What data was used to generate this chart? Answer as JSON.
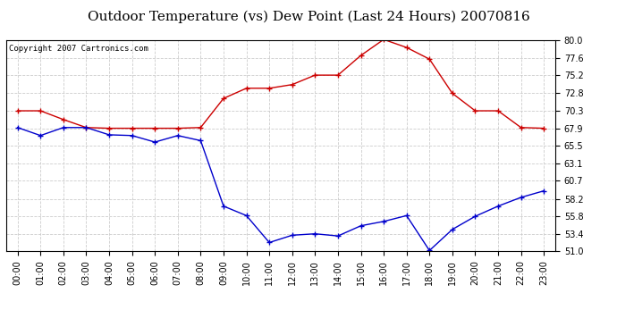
{
  "title": "Outdoor Temperature (vs) Dew Point (Last 24 Hours) 20070816",
  "copyright_text": "Copyright 2007 Cartronics.com",
  "hours": [
    "00:00",
    "01:00",
    "02:00",
    "03:00",
    "04:00",
    "05:00",
    "06:00",
    "07:00",
    "08:00",
    "09:00",
    "10:00",
    "11:00",
    "12:00",
    "13:00",
    "14:00",
    "15:00",
    "16:00",
    "17:00",
    "18:00",
    "19:00",
    "20:00",
    "21:00",
    "22:00",
    "23:00"
  ],
  "temp": [
    70.3,
    70.3,
    69.1,
    68.0,
    67.9,
    67.9,
    67.9,
    67.9,
    68.0,
    72.0,
    73.4,
    73.4,
    73.9,
    75.2,
    75.2,
    77.9,
    80.1,
    79.0,
    77.4,
    72.7,
    70.3,
    70.3,
    68.0,
    67.9
  ],
  "dew": [
    68.0,
    66.9,
    68.0,
    68.0,
    67.0,
    66.9,
    66.0,
    66.9,
    66.2,
    57.2,
    55.9,
    52.2,
    53.2,
    53.4,
    53.1,
    54.5,
    55.1,
    55.9,
    51.1,
    54.0,
    55.8,
    57.2,
    58.4,
    59.3
  ],
  "temp_color": "#cc0000",
  "dew_color": "#0000cc",
  "yticks": [
    51.0,
    53.4,
    55.8,
    58.2,
    60.7,
    63.1,
    65.5,
    67.9,
    70.3,
    72.8,
    75.2,
    77.6,
    80.0
  ],
  "ymin": 51.0,
  "ymax": 80.0,
  "bg_color": "#ffffff",
  "plot_bg_color": "#ffffff",
  "grid_color": "#cccccc",
  "title_fontsize": 11,
  "copyright_fontsize": 6.5
}
